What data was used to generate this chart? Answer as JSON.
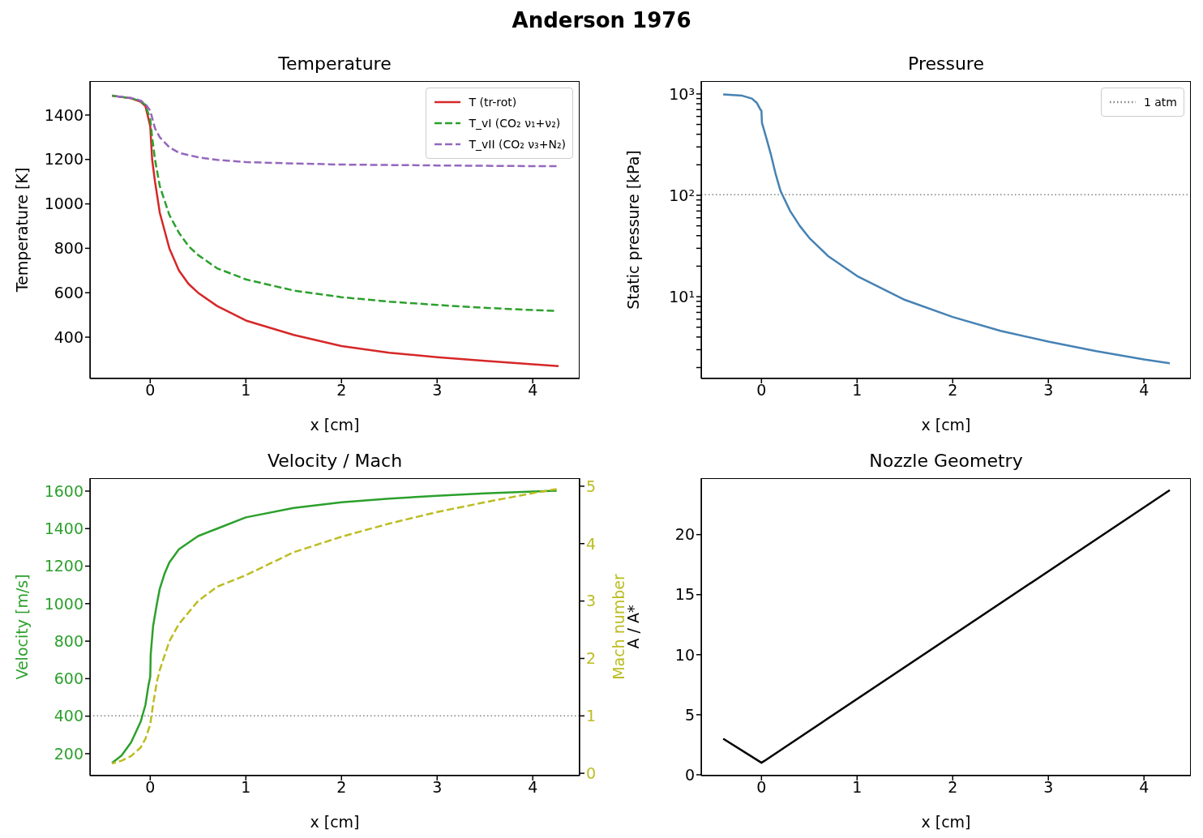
{
  "chart_data": [
    {
      "type": "line",
      "title": "Temperature",
      "annotations": [
        "Anderson 1976"
      ],
      "xlabel": "x [cm]",
      "ylabel": "Temperature [K]",
      "xlim": [
        -0.63,
        4.49
      ],
      "xticks": [
        0,
        1,
        2,
        3,
        4
      ],
      "ylim": [
        214,
        1553
      ],
      "yticks": [
        400,
        600,
        800,
        1000,
        1200,
        1400
      ],
      "legend": "top right",
      "series": [
        {
          "name": "T (tr-rot)",
          "color": "#d62728",
          "line_style": "solid",
          "x": [
            -0.4,
            -0.2,
            -0.1,
            -0.05,
            0,
            0.02,
            0.05,
            0.1,
            0.15,
            0.2,
            0.3,
            0.4,
            0.5,
            0.7,
            1,
            1.5,
            2,
            2.5,
            3,
            3.5,
            4,
            4.27
          ],
          "values": [
            1487,
            1475,
            1460,
            1440,
            1350,
            1200,
            1100,
            960,
            880,
            800,
            700,
            640,
            600,
            540,
            475,
            410,
            360,
            330,
            310,
            293,
            278,
            270
          ]
        },
        {
          "name": "T_vI  (CO₂ ν₁+ν₂)",
          "color": "#2ca02c",
          "line_style": "dashed",
          "x": [
            -0.4,
            -0.2,
            -0.1,
            -0.05,
            0,
            0.02,
            0.05,
            0.1,
            0.2,
            0.3,
            0.4,
            0.5,
            0.7,
            1,
            1.5,
            2,
            2.5,
            3,
            3.5,
            4,
            4.25
          ],
          "values": [
            1487,
            1476,
            1462,
            1445,
            1380,
            1300,
            1200,
            1080,
            950,
            870,
            810,
            770,
            710,
            660,
            610,
            580,
            560,
            545,
            532,
            522,
            518
          ]
        },
        {
          "name": "T_vII (CO₂ ν₃+N₂)",
          "color": "#9467bd",
          "line_style": "dashed",
          "x": [
            -0.4,
            -0.2,
            -0.1,
            -0.05,
            0,
            0.05,
            0.1,
            0.2,
            0.3,
            0.5,
            0.7,
            1,
            1.5,
            2,
            3,
            4,
            4.27
          ],
          "values": [
            1487,
            1477,
            1465,
            1450,
            1420,
            1340,
            1300,
            1255,
            1230,
            1210,
            1198,
            1188,
            1182,
            1177,
            1173,
            1170,
            1170
          ]
        }
      ]
    },
    {
      "type": "line",
      "title": "Pressure",
      "xlabel": "x [cm]",
      "ylabel": "Static pressure [kPa]",
      "log": "y",
      "xlim": [
        -0.63,
        4.49
      ],
      "xticks": [
        0,
        1,
        2,
        3,
        4
      ],
      "ylim": [
        1.56,
        1340
      ],
      "yticks": [
        {
          "value": 2,
          "label": null
        },
        {
          "value": 3,
          "label": null
        },
        {
          "value": 4,
          "label": null
        },
        {
          "value": 5,
          "label": null
        },
        {
          "value": 6,
          "label": null
        },
        {
          "value": 7,
          "label": null
        },
        {
          "value": 8,
          "label": null
        },
        {
          "value": 9,
          "label": null
        },
        {
          "value": 10,
          "label": "10¹"
        },
        {
          "value": 20,
          "label": null
        },
        {
          "value": 30,
          "label": null
        },
        {
          "value": 40,
          "label": null
        },
        {
          "value": 50,
          "label": null
        },
        {
          "value": 60,
          "label": null
        },
        {
          "value": 70,
          "label": null
        },
        {
          "value": 80,
          "label": null
        },
        {
          "value": 90,
          "label": null
        },
        {
          "value": 100,
          "label": "10²"
        },
        {
          "value": 200,
          "label": null
        },
        {
          "value": 300,
          "label": null
        },
        {
          "value": 400,
          "label": null
        },
        {
          "value": 500,
          "label": null
        },
        {
          "value": 600,
          "label": null
        },
        {
          "value": 700,
          "label": null
        },
        {
          "value": 800,
          "label": null
        },
        {
          "value": 900,
          "label": null
        },
        {
          "value": 1000,
          "label": "10³"
        }
      ],
      "legend": "top right",
      "ref_lines": [
        {
          "axis": "y",
          "value": 101.325,
          "label": "1 atm",
          "color": "#808080",
          "line_style": "dotted"
        }
      ],
      "series": [
        {
          "color": "#4682b4",
          "line_style": "solid",
          "x": [
            -0.4,
            -0.2,
            -0.1,
            -0.05,
            -0.01,
            0,
            0.005,
            0.05,
            0.1,
            0.15,
            0.2,
            0.3,
            0.4,
            0.5,
            0.7,
            1,
            1.5,
            2,
            2.5,
            3,
            3.5,
            4,
            4.27
          ],
          "values": [
            990,
            960,
            900,
            820,
            700,
            680,
            520,
            370,
            250,
            160,
            110,
            70,
            50,
            38,
            25,
            16,
            9.3,
            6.3,
            4.6,
            3.6,
            2.9,
            2.4,
            2.2
          ]
        }
      ]
    },
    {
      "type": "line",
      "title": "Velocity / Mach",
      "xlabel": "x [cm]",
      "ylabel": "Velocity [m/s]",
      "y2label": "Mach number",
      "xlim": [
        -0.63,
        4.49
      ],
      "xticks": [
        0,
        1,
        2,
        3,
        4
      ],
      "ylim": [
        83,
        1669
      ],
      "yticks": [
        200,
        400,
        600,
        800,
        1000,
        1200,
        1400,
        1600
      ],
      "y2lim": [
        -0.04,
        5.14
      ],
      "y2ticks": [
        0,
        1,
        2,
        3,
        4,
        5
      ],
      "ref_lines": [
        {
          "axis": "y2",
          "value": 1,
          "color": "#808080",
          "line_style": "dotted"
        }
      ],
      "series": [
        {
          "color": "#2ca02c",
          "line_style": "solid",
          "x": [
            -0.4,
            -0.3,
            -0.2,
            -0.1,
            -0.05,
            -0.02,
            0,
            0.005,
            0.03,
            0.07,
            0.1,
            0.15,
            0.2,
            0.3,
            0.5,
            0.7,
            1,
            1.5,
            2,
            2.5,
            3,
            3.5,
            4,
            4.25
          ],
          "values": [
            150,
            190,
            260,
            370,
            460,
            560,
            610,
            730,
            880,
            1000,
            1080,
            1160,
            1220,
            1290,
            1360,
            1400,
            1460,
            1510,
            1540,
            1560,
            1575,
            1588,
            1598,
            1602
          ]
        },
        {
          "color": "#bcbd22",
          "line_style": "dashed",
          "axis": "y2",
          "x": [
            -0.4,
            -0.3,
            -0.2,
            -0.1,
            -0.05,
            0,
            0.03,
            0.07,
            0.1,
            0.2,
            0.3,
            0.5,
            0.7,
            1,
            1.5,
            2,
            2.5,
            3,
            3.5,
            4,
            4.25
          ],
          "values": [
            0.17,
            0.22,
            0.3,
            0.45,
            0.6,
            0.85,
            1.2,
            1.6,
            1.8,
            2.3,
            2.6,
            3.0,
            3.25,
            3.45,
            3.85,
            4.12,
            4.35,
            4.55,
            4.72,
            4.88,
            4.95
          ]
        }
      ]
    },
    {
      "type": "line",
      "title": "Nozzle Geometry",
      "xlabel": "x [cm]",
      "ylabel": "A / A*",
      "xlim": [
        -0.63,
        4.49
      ],
      "xticks": [
        0,
        1,
        2,
        3,
        4
      ],
      "ylim": [
        -0.07,
        24.7
      ],
      "yticks": [
        0,
        5,
        10,
        15,
        20
      ],
      "series": [
        {
          "color": "#000000",
          "line_style": "solid",
          "x": [
            -0.4,
            -0.03,
            0,
            0.03,
            4.27
          ],
          "values": [
            3.0,
            1.15,
            1.0,
            1.15,
            23.7
          ]
        }
      ]
    }
  ]
}
